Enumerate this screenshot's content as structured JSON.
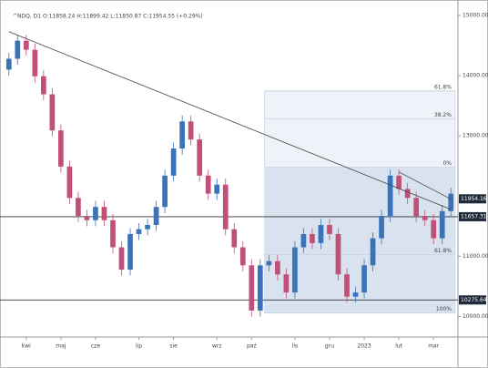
{
  "chart_data": {
    "type": "candlestick",
    "title": "^NDQ, D1 O:11858.24 H:11899.42 L:11850.87 C:11954.55 (+0.29%)",
    "categories": [
      null,
      null,
      "kwi",
      null,
      null,
      null,
      "maj",
      null,
      null,
      null,
      "cze",
      null,
      null,
      null,
      null,
      "lip",
      null,
      null,
      null,
      "sie",
      null,
      null,
      null,
      null,
      "wrz",
      null,
      null,
      null,
      "paź",
      null,
      null,
      null,
      null,
      "lis",
      null,
      null,
      null,
      "gru",
      null,
      null,
      null,
      "2023",
      null,
      null,
      null,
      "lut",
      null,
      null,
      null,
      "mar",
      null,
      null
    ],
    "open": [
      14100,
      14280,
      14580,
      14430,
      13990,
      13690,
      13090,
      12490,
      11970,
      11670,
      11600,
      11820,
      11600,
      11150,
      10780,
      11370,
      11450,
      11520,
      11820,
      12340,
      12790,
      13240,
      12940,
      12340,
      12040,
      12190,
      11450,
      11150,
      10850,
      10100,
      10850,
      10920,
      10700,
      10400,
      11150,
      11370,
      11220,
      11520,
      11370,
      10700,
      10330,
      10400,
      10850,
      11300,
      11670,
      12340,
      12120,
      11970,
      11670,
      11600,
      11300,
      11750
    ],
    "high": [
      14380,
      14680,
      14680,
      14530,
      14090,
      13790,
      13190,
      12590,
      12070,
      11770,
      11920,
      11920,
      11700,
      11250,
      11470,
      11550,
      11620,
      11920,
      12440,
      12890,
      13340,
      13340,
      13040,
      12440,
      12290,
      12290,
      11550,
      11250,
      10950,
      10950,
      11020,
      11020,
      10800,
      11250,
      11470,
      11470,
      11620,
      11620,
      11470,
      10800,
      10500,
      10950,
      11400,
      11770,
      12440,
      12440,
      12220,
      12070,
      11770,
      11700,
      11850,
      12140
    ],
    "low": [
      14000,
      14180,
      14330,
      13890,
      13590,
      12990,
      12390,
      11870,
      11570,
      11500,
      11500,
      11500,
      11050,
      10680,
      10680,
      11270,
      11350,
      11420,
      11720,
      12240,
      12690,
      12840,
      12240,
      11940,
      11940,
      11350,
      11050,
      10750,
      10000,
      10000,
      10750,
      10600,
      10300,
      10300,
      11050,
      11120,
      11120,
      11270,
      10600,
      10230,
      10230,
      10300,
      10750,
      11200,
      11570,
      12020,
      11870,
      11570,
      11500,
      11200,
      11200,
      11650
    ],
    "close": [
      14280,
      14580,
      14430,
      13990,
      13690,
      13090,
      12490,
      11970,
      11670,
      11600,
      11820,
      11600,
      11150,
      10780,
      11370,
      11450,
      11520,
      11820,
      12340,
      12790,
      13240,
      12940,
      12340,
      12040,
      12190,
      11450,
      11150,
      10850,
      10100,
      10850,
      10920,
      10700,
      10400,
      11150,
      11370,
      11220,
      11520,
      11370,
      10700,
      10330,
      10400,
      10850,
      11300,
      11670,
      12340,
      12120,
      11970,
      11670,
      11600,
      11300,
      11750,
      12040
    ],
    "up_color": "#3b73b9",
    "down_color": "#c0507a",
    "ylim": [
      9660,
      15180
    ],
    "yticks": [
      {
        "value": 15000,
        "label": "15000.00"
      },
      {
        "value": 14000,
        "label": "14000.00"
      },
      {
        "value": 13000,
        "label": "13000.00"
      },
      {
        "value": 11000,
        "label": "11000.00"
      },
      {
        "value": 10000,
        "label": "10000.00"
      }
    ],
    "price_labels": [
      11954.16,
      11657.31,
      10275.64
    ],
    "levels": [
      11657.31,
      10275.64
    ],
    "trendlines": [
      {
        "from": [
          0,
          14730
        ],
        "to": [
          51,
          11780
        ]
      },
      {
        "from": [
          45,
          12400
        ],
        "to": [
          51,
          11950
        ]
      }
    ],
    "fib": {
      "start": 30,
      "levels": [
        {
          "value": 13746,
          "label": "61.8%"
        },
        {
          "value": 13283,
          "label": "38.2%"
        },
        {
          "value": 12477,
          "label": "0%"
        },
        {
          "value": 11029,
          "label": "61.8%"
        },
        {
          "value": 10058,
          "label": "100%"
        }
      ]
    }
  }
}
